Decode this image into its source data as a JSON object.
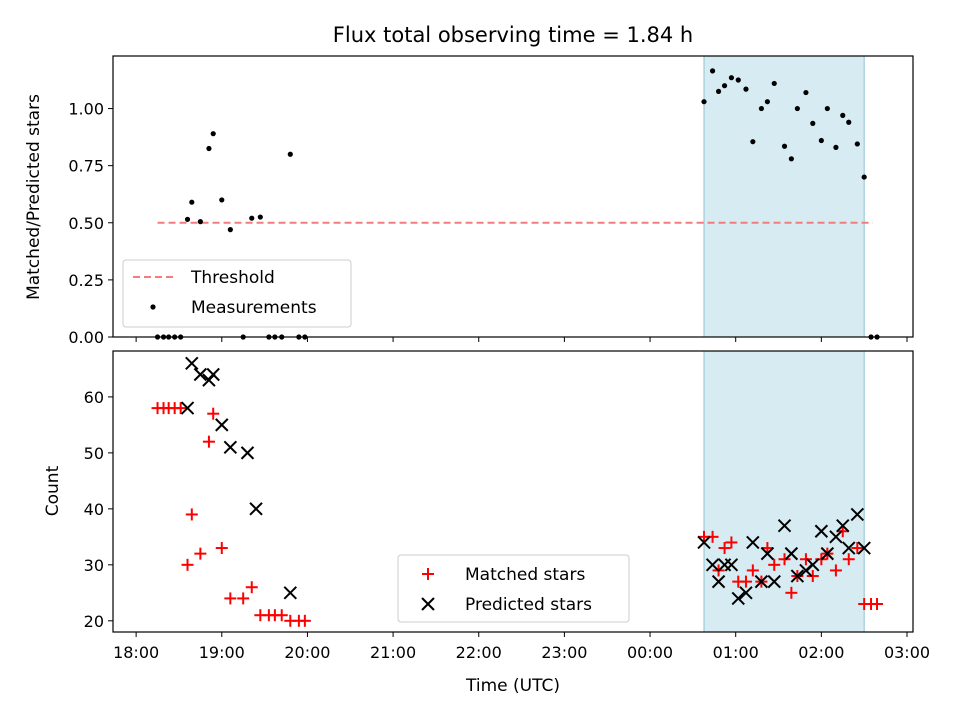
{
  "chart_data": [
    {
      "type": "scatter",
      "title": "Flux total observing time = 1.84 h",
      "xlabel": "",
      "ylabel": "Matched/Predicted stars",
      "ylim": [
        0,
        1.23
      ],
      "yticks": [
        0.0,
        0.25,
        0.5,
        0.75,
        1.0
      ],
      "ytick_labels": [
        "0.00",
        "0.25",
        "0.50",
        "0.75",
        "1.00"
      ],
      "x_unit": "hours since 18:00 UTC",
      "xlim": [
        -0.27,
        9.07
      ],
      "shaded_interval": [
        6.63,
        8.5
      ],
      "legend": {
        "placement": "lower-left",
        "entries": [
          "Threshold",
          "Measurements"
        ]
      },
      "series": [
        {
          "name": "Threshold",
          "kind": "dashed-line",
          "color": "#f47c7c",
          "x": [
            0.25,
            8.6
          ],
          "y": [
            0.5,
            0.5
          ]
        },
        {
          "name": "Measurements",
          "kind": "points",
          "color": "#000000",
          "x": [
            0.25,
            0.32,
            0.38,
            0.45,
            0.52,
            0.6,
            0.65,
            0.75,
            0.85,
            0.9,
            1.0,
            1.1,
            1.25,
            1.35,
            1.45,
            1.55,
            1.62,
            1.7,
            1.8,
            1.9,
            1.97,
            6.63,
            6.73,
            6.8,
            6.87,
            6.95,
            7.03,
            7.12,
            7.2,
            7.3,
            7.37,
            7.45,
            7.57,
            7.65,
            7.72,
            7.82,
            7.9,
            8.0,
            8.07,
            8.17,
            8.25,
            8.32,
            8.42,
            8.5,
            8.58,
            8.65
          ],
          "y": [
            0.0,
            0.0,
            0.0,
            0.0,
            0.0,
            0.515,
            0.59,
            0.505,
            0.825,
            0.89,
            0.6,
            0.47,
            0.0,
            0.52,
            0.525,
            0.0,
            0.0,
            0.0,
            0.8,
            0.0,
            0.0,
            1.03,
            1.165,
            1.075,
            1.1,
            1.135,
            1.125,
            1.085,
            0.855,
            1.0,
            1.03,
            1.11,
            0.835,
            0.78,
            1.0,
            1.07,
            0.935,
            0.86,
            1.0,
            0.83,
            0.97,
            0.94,
            0.845,
            0.7,
            0.0,
            0.0
          ]
        }
      ]
    },
    {
      "type": "scatter",
      "title": "",
      "xlabel": "Time (UTC)",
      "ylabel": "Count",
      "ylim": [
        18,
        68.2
      ],
      "yticks": [
        20,
        30,
        40,
        50,
        60
      ],
      "ytick_labels": [
        "20",
        "30",
        "40",
        "50",
        "60"
      ],
      "x_unit": "hours since 18:00 UTC",
      "xlim": [
        -0.27,
        9.07
      ],
      "xticks": [
        0,
        1,
        2,
        3,
        4,
        5,
        6,
        7,
        8,
        9
      ],
      "xtick_labels": [
        "18:00",
        "19:00",
        "20:00",
        "21:00",
        "22:00",
        "23:00",
        "00:00",
        "01:00",
        "02:00",
        "03:00"
      ],
      "shaded_interval": [
        6.63,
        8.5
      ],
      "legend": {
        "placement": "lower-center",
        "entries": [
          "Matched stars",
          "Predicted stars"
        ]
      },
      "series": [
        {
          "name": "Matched stars",
          "marker": "+",
          "color": "#ff0000",
          "x": [
            0.25,
            0.32,
            0.38,
            0.45,
            0.52,
            0.6,
            0.65,
            0.75,
            0.85,
            0.9,
            1.0,
            1.1,
            1.25,
            1.35,
            1.45,
            1.55,
            1.62,
            1.7,
            1.8,
            1.9,
            1.97,
            6.63,
            6.73,
            6.8,
            6.87,
            6.95,
            7.03,
            7.12,
            7.2,
            7.3,
            7.37,
            7.45,
            7.57,
            7.65,
            7.72,
            7.82,
            7.9,
            8.0,
            8.07,
            8.17,
            8.25,
            8.32,
            8.42,
            8.5,
            8.58,
            8.65
          ],
          "y": [
            58,
            58,
            58,
            58,
            58,
            30,
            39,
            32,
            52,
            57,
            33,
            24,
            24,
            26,
            21,
            21,
            21,
            21,
            20,
            20,
            20,
            35,
            35,
            29,
            33,
            34,
            27,
            27,
            29,
            27,
            33,
            30,
            31,
            25,
            28,
            31,
            28,
            31,
            32,
            29,
            36,
            31,
            33,
            23,
            23,
            23
          ]
        },
        {
          "name": "Predicted stars",
          "marker": "x",
          "color": "#000000",
          "x": [
            0.6,
            0.65,
            0.75,
            0.85,
            0.9,
            1.0,
            1.1,
            1.3,
            1.4,
            1.8,
            6.63,
            6.73,
            6.8,
            6.87,
            6.95,
            7.03,
            7.12,
            7.2,
            7.3,
            7.37,
            7.45,
            7.57,
            7.65,
            7.72,
            7.82,
            7.9,
            8.0,
            8.07,
            8.17,
            8.25,
            8.32,
            8.42,
            8.5
          ],
          "y": [
            58,
            66,
            64,
            63,
            64,
            55,
            51,
            50,
            40,
            25,
            34,
            30,
            27,
            30,
            30,
            24,
            25,
            34,
            27,
            32,
            27,
            37,
            32,
            28,
            29,
            30,
            36,
            32,
            35,
            37,
            33,
            39,
            33
          ]
        }
      ]
    }
  ]
}
